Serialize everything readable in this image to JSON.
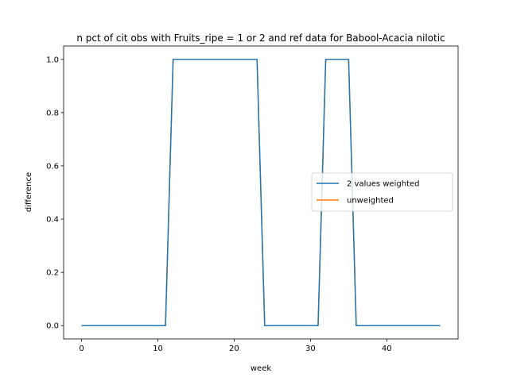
{
  "chart_data": {
    "type": "line",
    "title": "n pct of cit obs with Fruits_ripe = 1 or 2 and ref data for Babool-Acacia nilotic",
    "xlabel": "week",
    "ylabel": "difference",
    "xlim": [
      -2.35,
      49.35
    ],
    "ylim": [
      -0.05,
      1.05
    ],
    "xticks": [
      0,
      10,
      20,
      30,
      40
    ],
    "yticks": [
      0.0,
      0.2,
      0.4,
      0.6,
      0.8,
      1.0
    ],
    "xtick_labels": [
      "0",
      "10",
      "20",
      "30",
      "40"
    ],
    "ytick_labels": [
      "0.0",
      "0.2",
      "0.4",
      "0.6",
      "0.8",
      "1.0"
    ],
    "grid": false,
    "legend_position": "center-right",
    "x": [
      0,
      1,
      2,
      3,
      4,
      5,
      6,
      7,
      8,
      9,
      10,
      11,
      12,
      13,
      14,
      15,
      16,
      17,
      18,
      19,
      20,
      21,
      22,
      23,
      24,
      25,
      26,
      27,
      28,
      29,
      30,
      31,
      32,
      33,
      34,
      35,
      36,
      37,
      38,
      39,
      40,
      41,
      42,
      43,
      44,
      45,
      46,
      47
    ],
    "series": [
      {
        "name": "2 values weighted",
        "color": "#1f77b4",
        "values": [
          0,
          0,
          0,
          0,
          0,
          0,
          0,
          0,
          0,
          0,
          0,
          0,
          1,
          1,
          1,
          1,
          1,
          1,
          1,
          1,
          1,
          1,
          1,
          1,
          0,
          0,
          0,
          0,
          0,
          0,
          0,
          0,
          1,
          1,
          1,
          1,
          0,
          0,
          0,
          0,
          0,
          0,
          0,
          0,
          0,
          0,
          0,
          0
        ]
      },
      {
        "name": "unweighted",
        "color": "#ff7f0e",
        "values": [
          0,
          0,
          0,
          0,
          0,
          0,
          0,
          0,
          0,
          0,
          0,
          0,
          1,
          1,
          1,
          1,
          1,
          1,
          1,
          1,
          1,
          1,
          1,
          1,
          0,
          0,
          0,
          0,
          0,
          0,
          0,
          0,
          1,
          1,
          1,
          1,
          0,
          0,
          0,
          0,
          0,
          0,
          0,
          0,
          0,
          0,
          0,
          0
        ]
      }
    ]
  }
}
